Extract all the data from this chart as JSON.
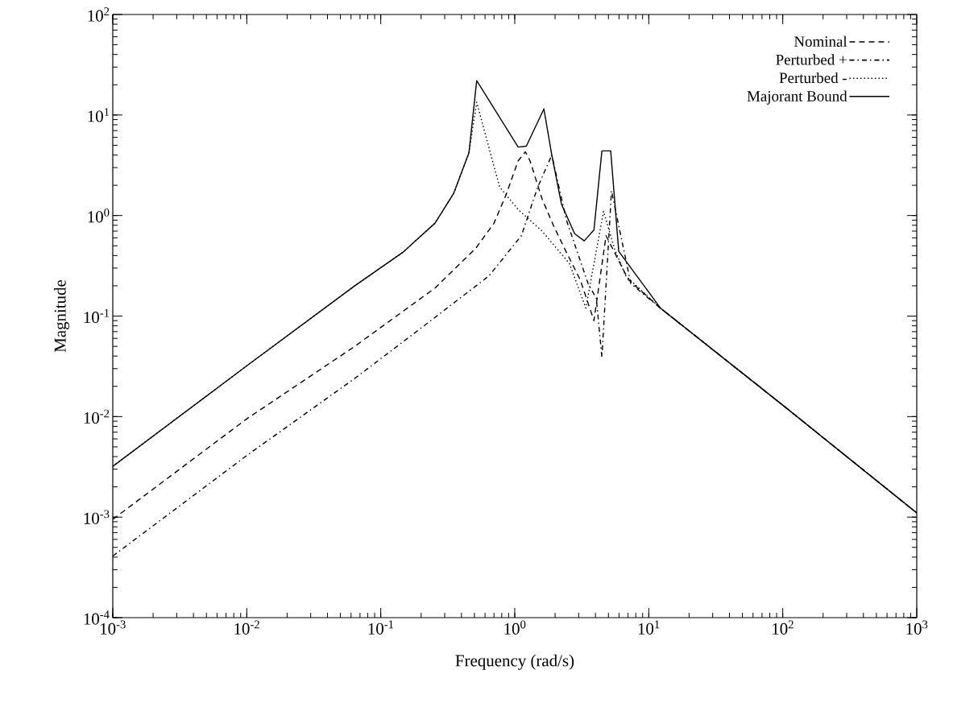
{
  "chart_data": {
    "type": "line",
    "xlabel": "Frequency (rad/s)",
    "ylabel": "Magnitude",
    "log": "xy",
    "grid": false,
    "legend": "top right",
    "xlim": [
      0.001,
      1000
    ],
    "ylim": [
      0.0001,
      100
    ],
    "xticks": [
      {
        "value": 0.001,
        "label": "10$^{-3}$"
      },
      {
        "value": 0.01,
        "label": "10$^{-2}$"
      },
      {
        "value": 0.1,
        "label": "10$^{-1}$"
      },
      {
        "value": 1,
        "label": "10$^{0}$"
      },
      {
        "value": 10,
        "label": "10$^{1}$"
      },
      {
        "value": 100,
        "label": "10$^{2}$"
      },
      {
        "value": 1000,
        "label": "10$^{3}$"
      }
    ],
    "yticks": [
      {
        "value": 0.0001,
        "label": "10$^{-4}$"
      },
      {
        "value": 0.001,
        "label": "10$^{-3}$"
      },
      {
        "value": 0.01,
        "label": "10$^{-2}$"
      },
      {
        "value": 0.1,
        "label": "10$^{-1}$"
      },
      {
        "value": 1,
        "label": "10$^{0}$"
      },
      {
        "value": 10,
        "label": "10$^{1}$"
      },
      {
        "value": 100,
        "label": "10$^{2}$"
      }
    ],
    "series": [
      {
        "name": "Nominal",
        "color": "#000000",
        "line_style": "dashed",
        "x": [
          0.001,
          0.01,
          0.064,
          0.254,
          0.51,
          0.7,
          0.86,
          1.06,
          1.2,
          1.3,
          1.6,
          1.95,
          2.43,
          3.08,
          3.9,
          4.8,
          7.05,
          12.3,
          100,
          1000
        ],
        "values": [
          0.00095,
          0.0095,
          0.05,
          0.19,
          0.47,
          0.84,
          1.6,
          3.5,
          4.3,
          3.5,
          1.46,
          0.79,
          0.43,
          0.23,
          0.09,
          0.63,
          0.23,
          0.119,
          0.013,
          0.0011
        ]
      },
      {
        "name": "Perturbed +",
        "color": "#000000",
        "line_style": "dashdotted",
        "x": [
          0.001,
          0.01,
          0.064,
          0.2,
          0.64,
          1.12,
          1.48,
          1.89,
          2.43,
          3.53,
          4.06,
          4.47,
          5.27,
          7.35,
          12.3,
          100,
          1000
        ],
        "values": [
          0.00041,
          0.0041,
          0.024,
          0.076,
          0.25,
          0.63,
          1.9,
          4.0,
          0.9,
          0.21,
          0.15,
          0.039,
          1.76,
          0.21,
          0.119,
          0.013,
          0.0011
        ]
      },
      {
        "name": "Perturbed -",
        "color": "#000000",
        "line_style": "dotted",
        "x": [
          0.001,
          0.01,
          0.064,
          0.146,
          0.254,
          0.35,
          0.455,
          0.52,
          0.77,
          1.06,
          1.6,
          2.57,
          3.39,
          4.6,
          5.57,
          6.76,
          12.3,
          100,
          1000
        ],
        "values": [
          0.0032,
          0.032,
          0.2,
          0.43,
          0.84,
          1.66,
          4.2,
          13.4,
          1.93,
          1.15,
          0.7,
          0.33,
          0.12,
          1.1,
          0.46,
          0.25,
          0.119,
          0.013,
          0.0011
        ]
      },
      {
        "name": "Majorant Bound",
        "color": "#000000",
        "line_style": "solid",
        "x": [
          0.001,
          0.01,
          0.064,
          0.146,
          0.254,
          0.35,
          0.455,
          0.52,
          1.06,
          1.22,
          1.65,
          1.89,
          2.23,
          2.8,
          3.3,
          3.9,
          4.47,
          5.2,
          5.97,
          12.3,
          100,
          1000
        ],
        "values": [
          0.0032,
          0.032,
          0.2,
          0.43,
          0.84,
          1.66,
          4.2,
          22,
          4.8,
          4.9,
          11.5,
          4.0,
          1.3,
          0.66,
          0.56,
          0.72,
          4.4,
          4.4,
          0.44,
          0.119,
          0.013,
          0.0011
        ]
      }
    ]
  }
}
